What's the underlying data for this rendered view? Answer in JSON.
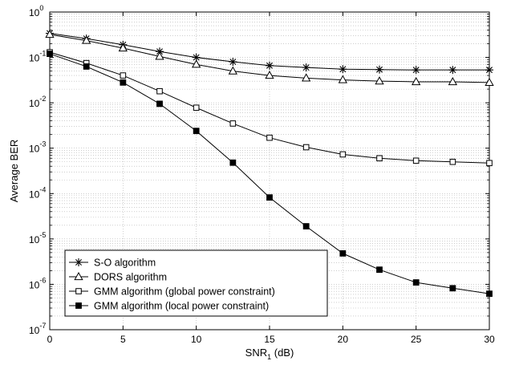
{
  "chart_data": {
    "type": "line",
    "xlabel_main": "SNR",
    "xlabel_sub": "1",
    "xlabel_unit": " (dB)",
    "ylabel": "Average BER",
    "xlim": [
      0,
      30
    ],
    "ylim_exponents": [
      -7,
      0
    ],
    "yscale": "log",
    "grid": "on (major and minor, dotted)",
    "legend_position": "bottom-left",
    "x_ticks": [
      "0",
      "5",
      "10",
      "15",
      "20",
      "25",
      "30"
    ],
    "y_ticks": [
      {
        "base": "10",
        "exp": "0"
      },
      {
        "base": "10",
        "exp": "-1"
      },
      {
        "base": "10",
        "exp": "-2"
      },
      {
        "base": "10",
        "exp": "-3"
      },
      {
        "base": "10",
        "exp": "-4"
      },
      {
        "base": "10",
        "exp": "-5"
      },
      {
        "base": "10",
        "exp": "-6"
      },
      {
        "base": "10",
        "exp": "-7"
      }
    ],
    "x": [
      0,
      2.5,
      5,
      7.5,
      10,
      12.5,
      15,
      17.5,
      20,
      22.5,
      25,
      27.5,
      30
    ],
    "series": [
      {
        "name": "S-O algorithm",
        "marker": "asterisk",
        "values": [
          0.34,
          0.26,
          0.19,
          0.135,
          0.1,
          0.08,
          0.066,
          0.06,
          0.055,
          0.054,
          0.053,
          0.053,
          0.053
        ]
      },
      {
        "name": "DORS algorithm",
        "marker": "triangle",
        "values": [
          0.32,
          0.235,
          0.16,
          0.105,
          0.07,
          0.05,
          0.04,
          0.035,
          0.032,
          0.03,
          0.029,
          0.029,
          0.028
        ]
      },
      {
        "name": "GMM algorithm (global power constraint)",
        "marker": "square-open",
        "values": [
          0.13,
          0.075,
          0.04,
          0.018,
          0.0078,
          0.0035,
          0.0017,
          0.00105,
          0.00073,
          0.0006,
          0.00053,
          0.0005,
          0.00047
        ]
      },
      {
        "name": "GMM algorithm (local power constraint)",
        "marker": "square-filled",
        "values": [
          0.12,
          0.063,
          0.028,
          0.0095,
          0.0024,
          0.00048,
          8.2e-05,
          1.9e-05,
          4.8e-06,
          2.1e-06,
          1.1e-06,
          8.2e-07,
          6.2e-07
        ]
      }
    ]
  }
}
